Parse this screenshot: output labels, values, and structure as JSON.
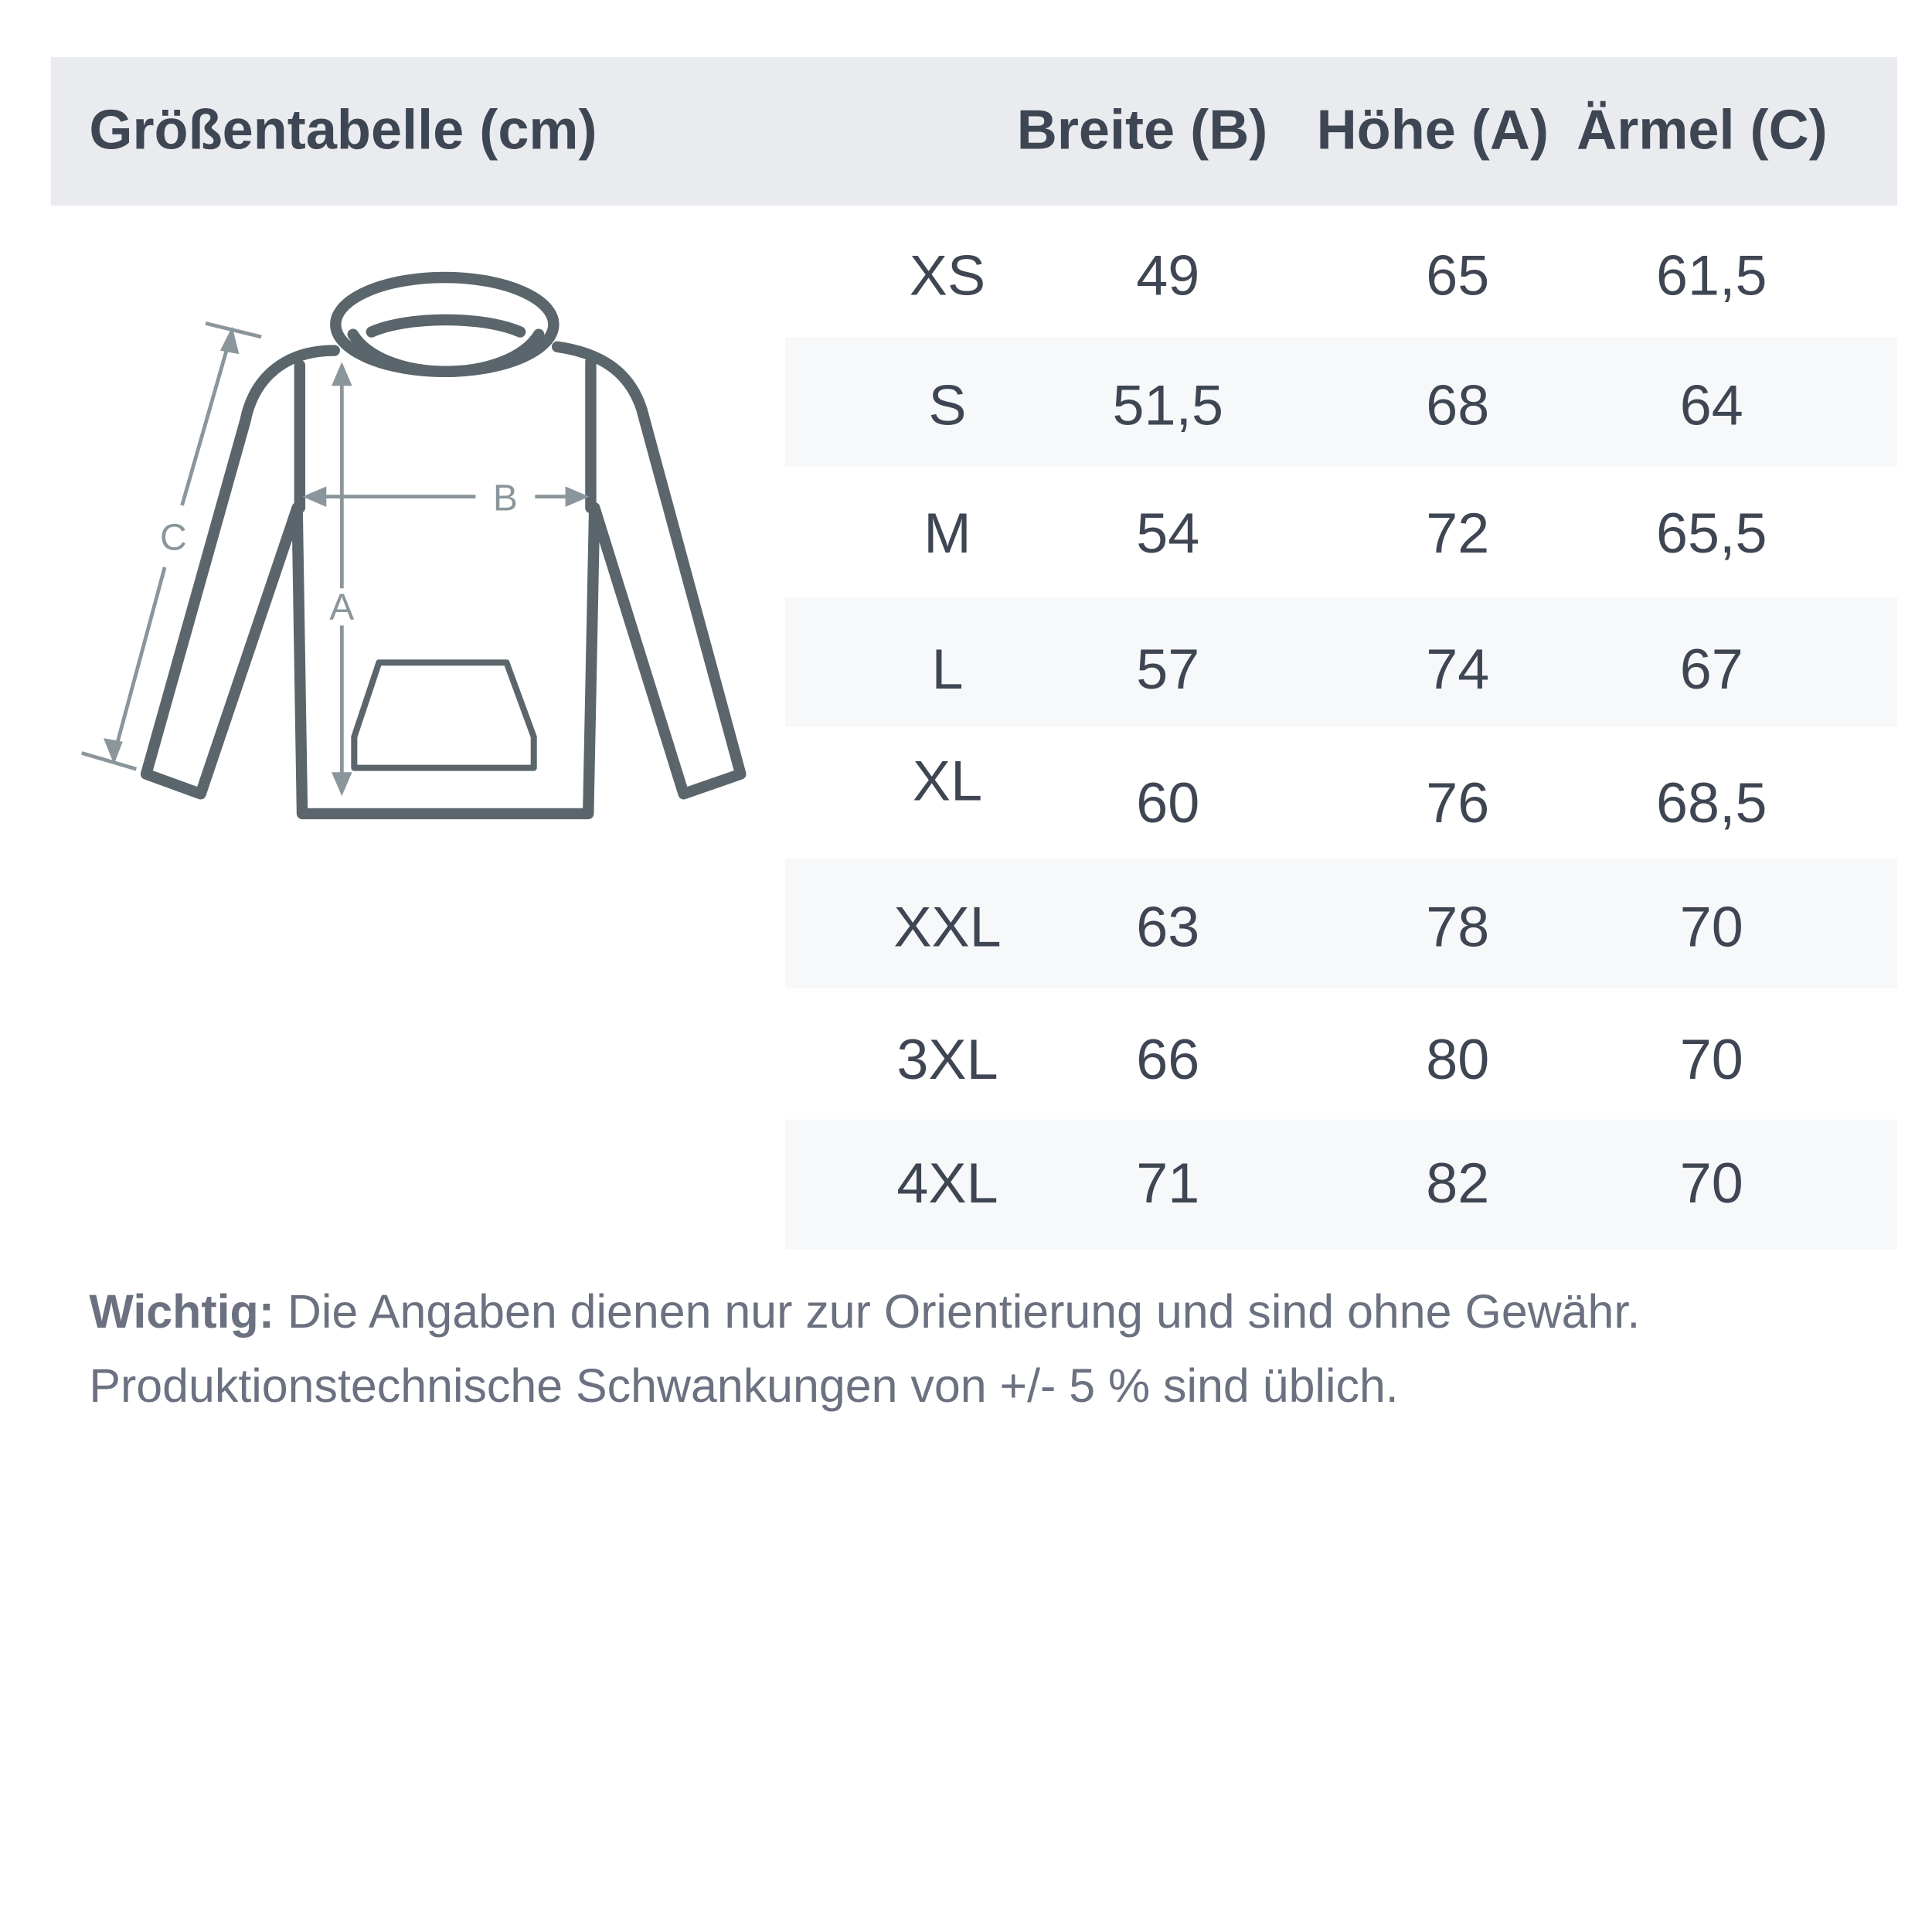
{
  "header": {
    "title": "Größentabelle (cm)",
    "columns": [
      "Breite (B)",
      "Höhe (A)",
      "Ärmel (C)"
    ]
  },
  "diagram": {
    "labels": {
      "width": "B",
      "height": "A",
      "sleeve": "C"
    }
  },
  "rows": [
    {
      "size": "XS",
      "breite": "49",
      "hoehe": "65",
      "aermel": "61,5"
    },
    {
      "size": "S",
      "breite": "51,5",
      "hoehe": "68",
      "aermel": "64"
    },
    {
      "size": "M",
      "breite": "54",
      "hoehe": "72",
      "aermel": "65,5"
    },
    {
      "size": "L",
      "breite": "57",
      "hoehe": "74",
      "aermel": "67"
    },
    {
      "size": "XL",
      "breite": "60",
      "hoehe": "76",
      "aermel": "68,5"
    },
    {
      "size": "XXL",
      "breite": "63",
      "hoehe": "78",
      "aermel": "70"
    },
    {
      "size": "3XL",
      "breite": "66",
      "hoehe": "80",
      "aermel": "70"
    },
    {
      "size": "4XL",
      "breite": "71",
      "hoehe": "82",
      "aermel": "70"
    }
  ],
  "note": {
    "label": "Wichtig:",
    "line1": " Die Angaben dienen nur zur Orientierung und sind ohne Gewähr.",
    "line2": "Produktionstechnische Schwankungen von +/- 5 % sind üblich."
  },
  "colors": {
    "header_bg": "#e9ebef",
    "stripe": "#f7f8fa",
    "text": "#3f4653",
    "garment": "#5a666c",
    "measure": "#8a959c"
  }
}
